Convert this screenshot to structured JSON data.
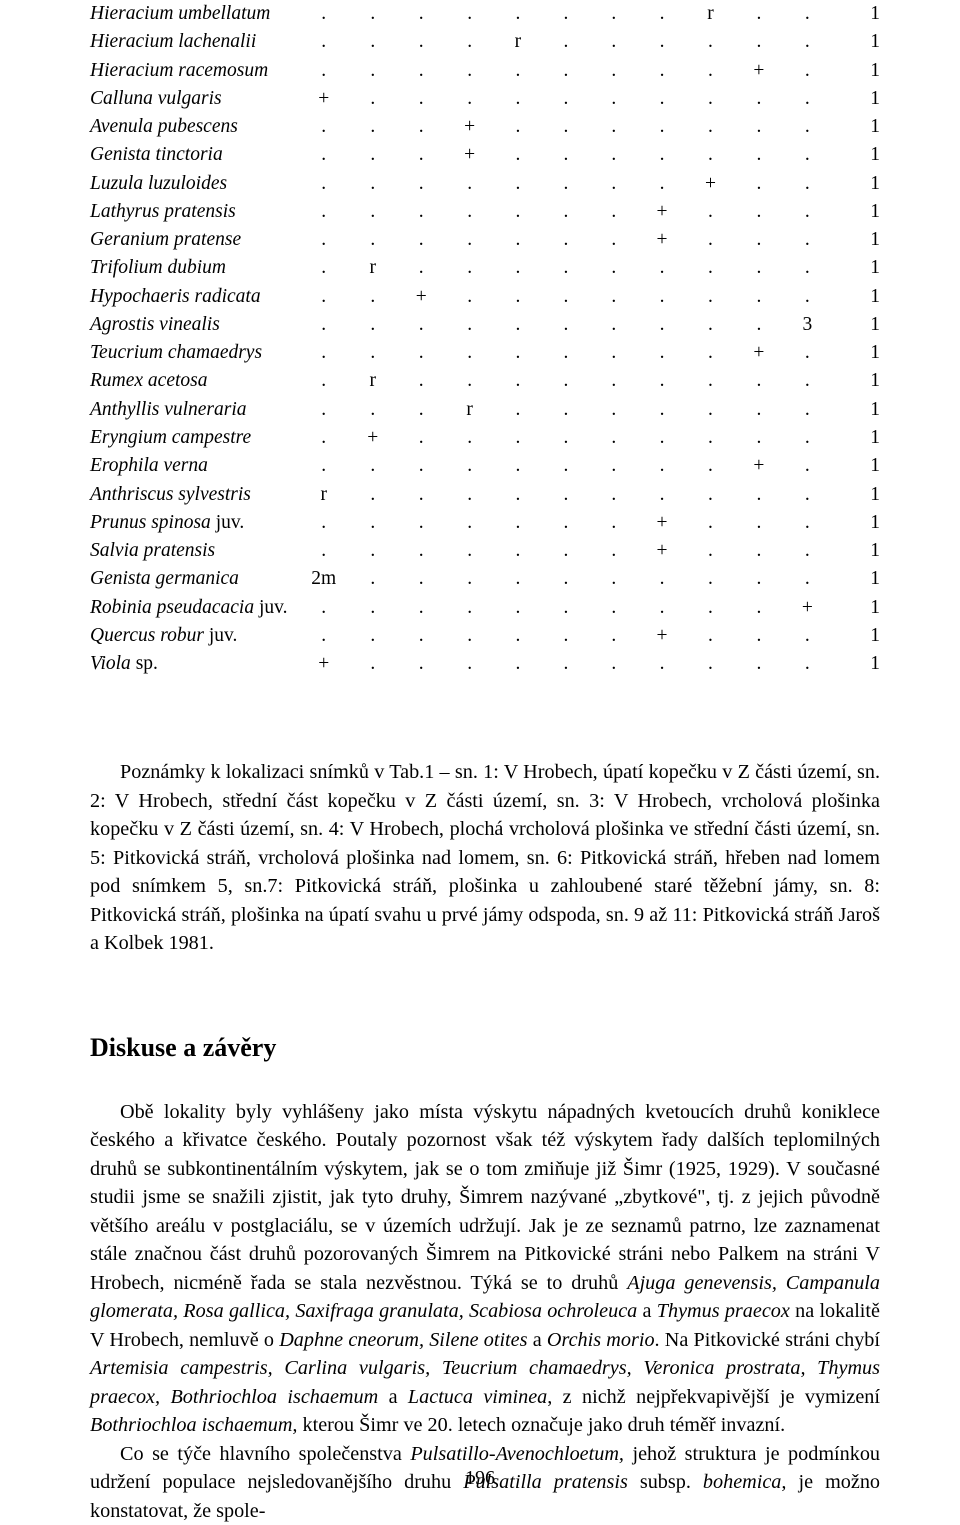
{
  "table": {
    "rows": [
      {
        "species": "Hieracium umbellatum",
        "suffix": "",
        "v": [
          ".",
          ".",
          ".",
          ".",
          ".",
          ".",
          ".",
          ".",
          "r",
          ".",
          ".",
          "1"
        ]
      },
      {
        "species": "Hieracium lachenalii",
        "suffix": "",
        "v": [
          ".",
          ".",
          ".",
          ".",
          "r",
          ".",
          ".",
          ".",
          ".",
          ".",
          ".",
          "1"
        ]
      },
      {
        "species": "Hieracium racemosum",
        "suffix": "",
        "v": [
          ".",
          ".",
          ".",
          ".",
          ".",
          ".",
          ".",
          ".",
          ".",
          "+",
          ".",
          "1"
        ]
      },
      {
        "species": "Calluna vulgaris",
        "suffix": "",
        "v": [
          "+",
          ".",
          ".",
          ".",
          ".",
          ".",
          ".",
          ".",
          ".",
          ".",
          ".",
          "1"
        ]
      },
      {
        "species": "Avenula pubescens",
        "suffix": "",
        "v": [
          ".",
          ".",
          ".",
          "+",
          ".",
          ".",
          ".",
          ".",
          ".",
          ".",
          ".",
          "1"
        ]
      },
      {
        "species": "Genista tinctoria",
        "suffix": "",
        "v": [
          ".",
          ".",
          ".",
          "+",
          ".",
          ".",
          ".",
          ".",
          ".",
          ".",
          ".",
          "1"
        ]
      },
      {
        "species": "Luzula luzuloides",
        "suffix": "",
        "v": [
          ".",
          ".",
          ".",
          ".",
          ".",
          ".",
          ".",
          ".",
          "+",
          ".",
          ".",
          "1"
        ]
      },
      {
        "species": "Lathyrus pratensis",
        "suffix": "",
        "v": [
          ".",
          ".",
          ".",
          ".",
          ".",
          ".",
          ".",
          "+",
          ".",
          ".",
          ".",
          "1"
        ]
      },
      {
        "species": "Geranium pratense",
        "suffix": "",
        "v": [
          ".",
          ".",
          ".",
          ".",
          ".",
          ".",
          ".",
          "+",
          ".",
          ".",
          ".",
          "1"
        ]
      },
      {
        "species": "Trifolium dubium",
        "suffix": "",
        "v": [
          ".",
          "r",
          ".",
          ".",
          ".",
          ".",
          ".",
          ".",
          ".",
          ".",
          ".",
          "1"
        ]
      },
      {
        "species": "Hypochaeris radicata",
        "suffix": "",
        "v": [
          ".",
          ".",
          "+",
          ".",
          ".",
          ".",
          ".",
          ".",
          ".",
          ".",
          ".",
          "1"
        ]
      },
      {
        "species": "Agrostis vinealis",
        "suffix": "",
        "v": [
          ".",
          ".",
          ".",
          ".",
          ".",
          ".",
          ".",
          ".",
          ".",
          ".",
          "3",
          "1"
        ]
      },
      {
        "species": "Teucrium chamaedrys",
        "suffix": "",
        "v": [
          ".",
          ".",
          ".",
          ".",
          ".",
          ".",
          ".",
          ".",
          ".",
          "+",
          ".",
          "1"
        ]
      },
      {
        "species": "Rumex acetosa",
        "suffix": "",
        "v": [
          ".",
          "r",
          ".",
          ".",
          ".",
          ".",
          ".",
          ".",
          ".",
          ".",
          ".",
          "1"
        ]
      },
      {
        "species": "Anthyllis vulneraria",
        "suffix": "",
        "v": [
          ".",
          ".",
          ".",
          "r",
          ".",
          ".",
          ".",
          ".",
          ".",
          ".",
          ".",
          "1"
        ]
      },
      {
        "species": "Eryngium campestre",
        "suffix": "",
        "v": [
          ".",
          "+",
          ".",
          ".",
          ".",
          ".",
          ".",
          ".",
          ".",
          ".",
          ".",
          "1"
        ]
      },
      {
        "species": "Erophila verna",
        "suffix": "",
        "v": [
          ".",
          ".",
          ".",
          ".",
          ".",
          ".",
          ".",
          ".",
          ".",
          "+",
          ".",
          "1"
        ]
      },
      {
        "species": "Anthriscus sylvestris",
        "suffix": "",
        "v": [
          "r",
          ".",
          ".",
          ".",
          ".",
          ".",
          ".",
          ".",
          ".",
          ".",
          ".",
          "1"
        ]
      },
      {
        "species": "Prunus spinosa",
        "suffix": " juv.",
        "v": [
          ".",
          ".",
          ".",
          ".",
          ".",
          ".",
          ".",
          "+",
          ".",
          ".",
          ".",
          "1"
        ]
      },
      {
        "species": "Salvia pratensis",
        "suffix": "",
        "v": [
          ".",
          ".",
          ".",
          ".",
          ".",
          ".",
          ".",
          "+",
          ".",
          ".",
          ".",
          "1"
        ]
      },
      {
        "species": "Genista germanica",
        "suffix": "",
        "v": [
          "2m",
          ".",
          ".",
          ".",
          ".",
          ".",
          ".",
          ".",
          ".",
          ".",
          ".",
          "1"
        ]
      },
      {
        "species": "Robinia pseudacacia",
        "suffix": " juv.",
        "v": [
          ".",
          ".",
          ".",
          ".",
          ".",
          ".",
          ".",
          ".",
          ".",
          ".",
          "+",
          "1"
        ]
      },
      {
        "species": "Quercus robur",
        "suffix": " juv.",
        "v": [
          ".",
          ".",
          ".",
          ".",
          ".",
          ".",
          ".",
          "+",
          ".",
          ".",
          ".",
          "1"
        ]
      },
      {
        "species": "Viola",
        "suffix": " sp.",
        "v": [
          "+",
          ".",
          ".",
          ".",
          ".",
          ".",
          ".",
          ".",
          ".",
          ".",
          ".",
          "1"
        ]
      }
    ]
  },
  "notes": "Poznámky k lokalizaci snímků v Tab.1 – sn. 1: V Hrobech, úpatí kopečku v Z části území, sn. 2: V Hrobech, střední část kopečku v Z části území, sn. 3: V Hrobech, vrcholová plošinka kopečku v Z části území, sn. 4: V Hrobech, plochá vrcholová plošinka ve střední části území, sn. 5: Pitkovická stráň, vrcholová plošinka nad lomem, sn. 6: Pitkovická stráň, hřeben nad lomem pod snímkem 5, sn.7: Pitkovická stráň, plošinka u zahloubené staré těžební jámy, sn. 8: Pitkovická stráň, plošinka na úpatí svahu u prvé jámy odspoda, sn. 9 až 11: Pitkovická stráň Jaroš a Kolbek 1981.",
  "section_title": "Diskuse a závěry",
  "body_html": "Obě lokality byly vyhlášeny jako místa výskytu nápadných kvetoucích druhů koniklece českého a křivatce českého. Poutaly pozornost však též výskytem řady dalších teplomilných druhů se subkontinentálním výskytem, jak se o tom zmiňuje již Šimr (1925, 1929). V současné studii jsme se snažili zjistit, jak tyto druhy, Šimrem nazývané „zbytkové\", tj. z jejich původně většího areálu v postglaciálu, se v územích udržují. Jak je ze seznamů patrno, lze zaznamenat stále značnou část druhů pozorovaných Šimrem na Pitkovické stráni nebo Palkem na stráni V Hrobech, nicméně řada se stala nezvěstnou. Týká se to druhů <span class=\"em\">Ajuga genevensis, Campanula glomerata, Rosa gallica, Saxifraga granulata, Scabiosa ochroleuca</span> a <span class=\"em\">Thymus praecox</span> na lokalitě V Hrobech, nemluvě o <span class=\"em\">Daphne cneorum, Silene otites</span> a <span class=\"em\">Orchis morio</span>. Na Pitkovické stráni chybí <span class=\"em\">Artemisia campestris, Carlina vulgaris, Teucrium chamaedrys, Veronica prostrata, Thymus praecox, Bothriochloa ischaemum</span> a <span class=\"em\">Lactuca viminea</span>, z nichž nejpřekvapivější je vymizení <span class=\"em\">Bothriochloa ischaemum,</span> kterou Šimr ve 20. letech označuje jako druh téměř invazní.",
  "body_p2": "Co se týče hlavního společenstva <span class=\"em\">Pulsatillo-Avenochloetum,</span> jehož struktura je podmínkou udržení populace nejsledovanějšího druhu <span class=\"em\">Pulsatilla pratensis</span> subsp. <span class=\"em\">bohemica,</span> je možno konstatovat, že spole-",
  "page_number": "196"
}
